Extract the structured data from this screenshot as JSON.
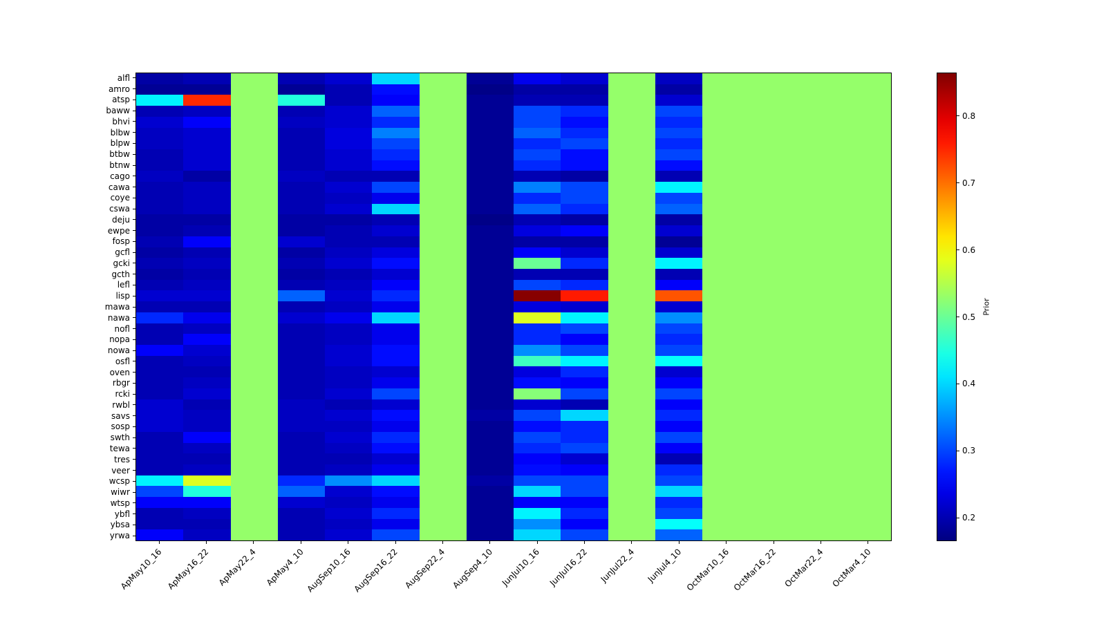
{
  "figure": {
    "background": "#ffffff"
  },
  "chart_data": {
    "type": "heatmap",
    "title": "",
    "colormap": "jet",
    "colorbar_label": "Prior",
    "vmin": 0.165,
    "vmax": 0.865,
    "colorbar_ticks": [
      0.2,
      0.3,
      0.4,
      0.5,
      0.6,
      0.7,
      0.8
    ],
    "grid": false,
    "x_tick_labels": [
      "ApMay10_16",
      "ApMay16_22",
      "ApMay22_4",
      "ApMay4_10",
      "AugSep10_16",
      "AugSep16_22",
      "AugSep22_4",
      "AugSep4_10",
      "JunJul10_16",
      "JunJul16_22",
      "JunJul22_4",
      "JunJul4_10",
      "OctMar10_16",
      "OctMar16_22",
      "OctMar22_4",
      "OctMar4_10"
    ],
    "y_tick_labels": [
      "alfl",
      "amro",
      "atsp",
      "baww",
      "bhvi",
      "blbw",
      "blpw",
      "btbw",
      "btnw",
      "cago",
      "cawa",
      "coye",
      "cswa",
      "deju",
      "ewpe",
      "fosp",
      "gcfl",
      "gcki",
      "gcth",
      "lefl",
      "lisp",
      "mawa",
      "nawa",
      "nofl",
      "nopa",
      "nowa",
      "osfl",
      "oven",
      "rbgr",
      "rcki",
      "rwbl",
      "savs",
      "sosp",
      "swth",
      "tewa",
      "tres",
      "veer",
      "wcsp",
      "wiwr",
      "wtsp",
      "ybfl",
      "ybsa",
      "yrwa"
    ],
    "values": [
      [
        0.19,
        0.2,
        0.53,
        0.2,
        0.22,
        0.4,
        0.53,
        0.18,
        0.24,
        0.22,
        0.53,
        0.21,
        0.53,
        0.53,
        0.53,
        0.53
      ],
      [
        0.18,
        0.18,
        0.53,
        0.18,
        0.2,
        0.26,
        0.53,
        0.17,
        0.19,
        0.19,
        0.53,
        0.19,
        0.53,
        0.53,
        0.53,
        0.53
      ],
      [
        0.42,
        0.75,
        0.53,
        0.45,
        0.2,
        0.25,
        0.53,
        0.18,
        0.2,
        0.2,
        0.53,
        0.22,
        0.53,
        0.53,
        0.53,
        0.53
      ],
      [
        0.2,
        0.21,
        0.53,
        0.2,
        0.22,
        0.32,
        0.53,
        0.18,
        0.3,
        0.28,
        0.53,
        0.3,
        0.53,
        0.53,
        0.53,
        0.53
      ],
      [
        0.22,
        0.25,
        0.53,
        0.21,
        0.22,
        0.28,
        0.53,
        0.18,
        0.3,
        0.26,
        0.53,
        0.28,
        0.53,
        0.53,
        0.53,
        0.53
      ],
      [
        0.21,
        0.22,
        0.53,
        0.2,
        0.23,
        0.34,
        0.53,
        0.18,
        0.32,
        0.28,
        0.53,
        0.3,
        0.53,
        0.53,
        0.53,
        0.53
      ],
      [
        0.21,
        0.22,
        0.53,
        0.2,
        0.23,
        0.3,
        0.53,
        0.18,
        0.28,
        0.3,
        0.53,
        0.28,
        0.53,
        0.53,
        0.53,
        0.53
      ],
      [
        0.2,
        0.22,
        0.53,
        0.2,
        0.22,
        0.28,
        0.53,
        0.18,
        0.3,
        0.26,
        0.53,
        0.3,
        0.53,
        0.53,
        0.53,
        0.53
      ],
      [
        0.2,
        0.22,
        0.53,
        0.2,
        0.22,
        0.26,
        0.53,
        0.18,
        0.28,
        0.26,
        0.53,
        0.26,
        0.53,
        0.53,
        0.53,
        0.53
      ],
      [
        0.21,
        0.19,
        0.53,
        0.21,
        0.2,
        0.2,
        0.53,
        0.18,
        0.2,
        0.19,
        0.53,
        0.2,
        0.53,
        0.53,
        0.53,
        0.53
      ],
      [
        0.2,
        0.21,
        0.53,
        0.2,
        0.22,
        0.3,
        0.53,
        0.18,
        0.34,
        0.3,
        0.53,
        0.42,
        0.53,
        0.53,
        0.53,
        0.53
      ],
      [
        0.2,
        0.21,
        0.53,
        0.2,
        0.21,
        0.24,
        0.53,
        0.18,
        0.28,
        0.3,
        0.53,
        0.3,
        0.53,
        0.53,
        0.53,
        0.53
      ],
      [
        0.2,
        0.21,
        0.53,
        0.2,
        0.22,
        0.4,
        0.53,
        0.18,
        0.32,
        0.28,
        0.53,
        0.32,
        0.53,
        0.53,
        0.53,
        0.53
      ],
      [
        0.19,
        0.19,
        0.53,
        0.19,
        0.19,
        0.2,
        0.53,
        0.17,
        0.2,
        0.19,
        0.53,
        0.19,
        0.53,
        0.53,
        0.53,
        0.53
      ],
      [
        0.19,
        0.2,
        0.53,
        0.19,
        0.2,
        0.22,
        0.53,
        0.18,
        0.23,
        0.25,
        0.53,
        0.22,
        0.53,
        0.53,
        0.53,
        0.53
      ],
      [
        0.2,
        0.25,
        0.53,
        0.22,
        0.2,
        0.2,
        0.53,
        0.18,
        0.19,
        0.19,
        0.53,
        0.18,
        0.53,
        0.53,
        0.53,
        0.53
      ],
      [
        0.19,
        0.2,
        0.53,
        0.19,
        0.21,
        0.23,
        0.53,
        0.18,
        0.25,
        0.22,
        0.53,
        0.22,
        0.53,
        0.53,
        0.53,
        0.53
      ],
      [
        0.2,
        0.21,
        0.53,
        0.2,
        0.22,
        0.26,
        0.53,
        0.18,
        0.5,
        0.28,
        0.53,
        0.42,
        0.53,
        0.53,
        0.53,
        0.53
      ],
      [
        0.19,
        0.2,
        0.53,
        0.19,
        0.2,
        0.22,
        0.53,
        0.18,
        0.2,
        0.2,
        0.53,
        0.2,
        0.53,
        0.53,
        0.53,
        0.53
      ],
      [
        0.2,
        0.21,
        0.53,
        0.2,
        0.21,
        0.25,
        0.53,
        0.18,
        0.3,
        0.28,
        0.53,
        0.25,
        0.53,
        0.53,
        0.53,
        0.53
      ],
      [
        0.22,
        0.22,
        0.53,
        0.32,
        0.22,
        0.28,
        0.53,
        0.18,
        0.86,
        0.76,
        0.53,
        0.72,
        0.53,
        0.53,
        0.53,
        0.53
      ],
      [
        0.2,
        0.2,
        0.53,
        0.2,
        0.21,
        0.24,
        0.53,
        0.18,
        0.23,
        0.22,
        0.53,
        0.22,
        0.53,
        0.53,
        0.53,
        0.53
      ],
      [
        0.28,
        0.24,
        0.53,
        0.22,
        0.24,
        0.4,
        0.53,
        0.18,
        0.58,
        0.42,
        0.53,
        0.35,
        0.53,
        0.53,
        0.53,
        0.53
      ],
      [
        0.2,
        0.21,
        0.53,
        0.2,
        0.21,
        0.24,
        0.53,
        0.18,
        0.28,
        0.3,
        0.53,
        0.3,
        0.53,
        0.53,
        0.53,
        0.53
      ],
      [
        0.2,
        0.25,
        0.53,
        0.2,
        0.21,
        0.24,
        0.53,
        0.18,
        0.28,
        0.25,
        0.53,
        0.28,
        0.53,
        0.53,
        0.53,
        0.53
      ],
      [
        0.25,
        0.22,
        0.53,
        0.2,
        0.22,
        0.26,
        0.53,
        0.18,
        0.35,
        0.3,
        0.53,
        0.3,
        0.53,
        0.53,
        0.53,
        0.53
      ],
      [
        0.2,
        0.21,
        0.53,
        0.2,
        0.22,
        0.26,
        0.53,
        0.18,
        0.47,
        0.42,
        0.53,
        0.43,
        0.53,
        0.53,
        0.53,
        0.53
      ],
      [
        0.2,
        0.2,
        0.53,
        0.2,
        0.21,
        0.22,
        0.53,
        0.18,
        0.23,
        0.28,
        0.53,
        0.22,
        0.53,
        0.53,
        0.53,
        0.53
      ],
      [
        0.2,
        0.21,
        0.53,
        0.2,
        0.21,
        0.24,
        0.53,
        0.18,
        0.26,
        0.25,
        0.53,
        0.25,
        0.53,
        0.53,
        0.53,
        0.53
      ],
      [
        0.2,
        0.22,
        0.53,
        0.2,
        0.22,
        0.3,
        0.53,
        0.18,
        0.52,
        0.3,
        0.53,
        0.3,
        0.53,
        0.53,
        0.53,
        0.53
      ],
      [
        0.22,
        0.2,
        0.53,
        0.21,
        0.2,
        0.22,
        0.53,
        0.18,
        0.22,
        0.2,
        0.53,
        0.25,
        0.53,
        0.53,
        0.53,
        0.53
      ],
      [
        0.22,
        0.21,
        0.53,
        0.21,
        0.22,
        0.26,
        0.53,
        0.19,
        0.3,
        0.4,
        0.53,
        0.28,
        0.53,
        0.53,
        0.53,
        0.53
      ],
      [
        0.22,
        0.21,
        0.53,
        0.21,
        0.21,
        0.24,
        0.53,
        0.18,
        0.26,
        0.28,
        0.53,
        0.25,
        0.53,
        0.53,
        0.53,
        0.53
      ],
      [
        0.2,
        0.25,
        0.53,
        0.2,
        0.22,
        0.28,
        0.53,
        0.18,
        0.3,
        0.28,
        0.53,
        0.3,
        0.53,
        0.53,
        0.53,
        0.53
      ],
      [
        0.2,
        0.21,
        0.53,
        0.2,
        0.21,
        0.26,
        0.53,
        0.18,
        0.28,
        0.3,
        0.53,
        0.25,
        0.53,
        0.53,
        0.53,
        0.53
      ],
      [
        0.2,
        0.2,
        0.53,
        0.2,
        0.2,
        0.22,
        0.53,
        0.18,
        0.25,
        0.22,
        0.53,
        0.2,
        0.53,
        0.53,
        0.53,
        0.53
      ],
      [
        0.2,
        0.21,
        0.53,
        0.2,
        0.21,
        0.24,
        0.53,
        0.18,
        0.26,
        0.25,
        0.53,
        0.28,
        0.53,
        0.53,
        0.53,
        0.53
      ],
      [
        0.42,
        0.58,
        0.53,
        0.28,
        0.35,
        0.4,
        0.53,
        0.19,
        0.3,
        0.3,
        0.53,
        0.3,
        0.53,
        0.53,
        0.53,
        0.53
      ],
      [
        0.3,
        0.45,
        0.53,
        0.32,
        0.22,
        0.26,
        0.53,
        0.18,
        0.4,
        0.3,
        0.53,
        0.4,
        0.53,
        0.53,
        0.53,
        0.53
      ],
      [
        0.25,
        0.25,
        0.53,
        0.22,
        0.21,
        0.24,
        0.53,
        0.18,
        0.25,
        0.25,
        0.53,
        0.28,
        0.53,
        0.53,
        0.53,
        0.53
      ],
      [
        0.2,
        0.21,
        0.53,
        0.2,
        0.22,
        0.28,
        0.53,
        0.18,
        0.42,
        0.28,
        0.53,
        0.3,
        0.53,
        0.53,
        0.53,
        0.53
      ],
      [
        0.2,
        0.2,
        0.53,
        0.2,
        0.21,
        0.24,
        0.53,
        0.18,
        0.35,
        0.25,
        0.53,
        0.43,
        0.53,
        0.53,
        0.53,
        0.53
      ],
      [
        0.25,
        0.21,
        0.53,
        0.2,
        0.22,
        0.3,
        0.53,
        0.18,
        0.4,
        0.3,
        0.53,
        0.32,
        0.53,
        0.53,
        0.53,
        0.53
      ]
    ]
  }
}
